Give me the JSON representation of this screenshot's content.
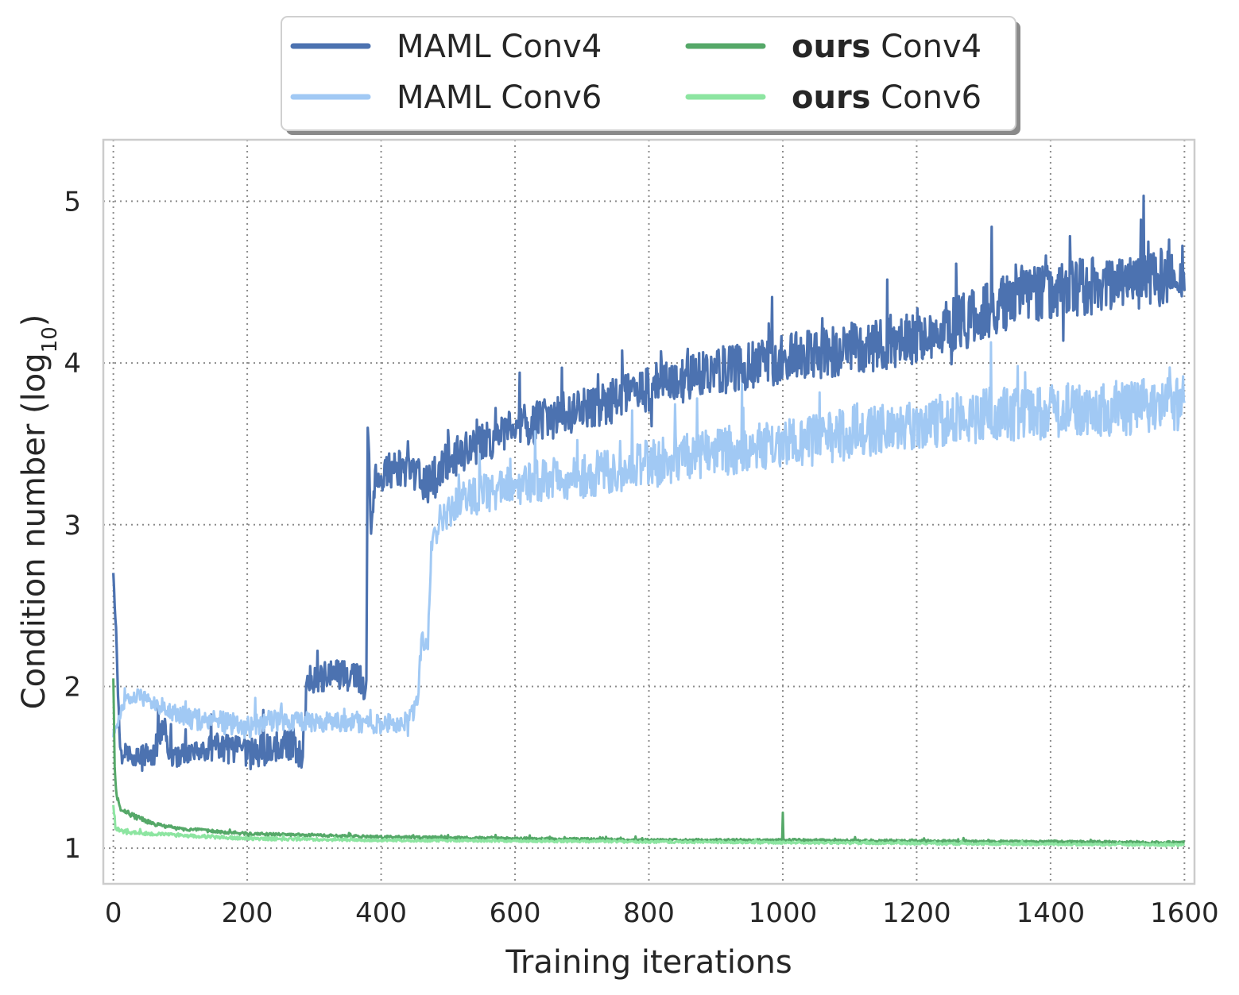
{
  "chart_data": {
    "type": "line",
    "title": "",
    "xlabel": "Training iterations",
    "ylabel_main": "Condition number (log",
    "ylabel_sub": "10",
    "ylabel_close": ")",
    "xlim": [
      -15,
      1615
    ],
    "ylim": [
      0.78,
      5.38
    ],
    "x_ticks": [
      0,
      200,
      400,
      600,
      800,
      1000,
      1200,
      1400,
      1600
    ],
    "y_ticks": [
      1,
      2,
      3,
      4,
      5
    ],
    "grid": true,
    "legend_position": "top-center-outside",
    "series": [
      {
        "key": "maml_conv4",
        "label_bold": "",
        "label_rest": "MAML Conv4",
        "color": "#4c72b0",
        "anchors": [
          [
            0,
            2.72
          ],
          [
            3,
            2.45
          ],
          [
            10,
            1.62
          ],
          [
            30,
            1.57
          ],
          [
            60,
            1.57
          ],
          [
            75,
            1.78
          ],
          [
            85,
            1.55
          ],
          [
            120,
            1.6
          ],
          [
            160,
            1.62
          ],
          [
            200,
            1.58
          ],
          [
            240,
            1.62
          ],
          [
            270,
            1.65
          ],
          [
            282,
            1.55
          ],
          [
            290,
            2.05
          ],
          [
            330,
            2.08
          ],
          [
            370,
            2.05
          ],
          [
            378,
            1.95
          ],
          [
            380,
            3.6
          ],
          [
            385,
            3.0
          ],
          [
            392,
            3.3
          ],
          [
            420,
            3.35
          ],
          [
            450,
            3.3
          ],
          [
            470,
            3.25
          ],
          [
            500,
            3.4
          ],
          [
            550,
            3.5
          ],
          [
            600,
            3.6
          ],
          [
            650,
            3.65
          ],
          [
            700,
            3.7
          ],
          [
            800,
            3.85
          ],
          [
            900,
            3.95
          ],
          [
            1000,
            4.02
          ],
          [
            1100,
            4.08
          ],
          [
            1200,
            4.15
          ],
          [
            1300,
            4.3
          ],
          [
            1350,
            4.42
          ],
          [
            1400,
            4.45
          ],
          [
            1500,
            4.5
          ],
          [
            1600,
            4.55
          ]
        ],
        "noise": [
          0.04,
          0.05,
          0.05,
          0.06,
          0.08,
          0.08,
          0.08,
          0.05,
          0.1,
          0.1,
          0.1,
          0.1,
          0.08,
          0.1,
          0.1,
          0.1,
          0.1,
          0.1,
          0.1,
          0.1,
          0.12,
          0.12,
          0.12,
          0.12,
          0.12,
          0.12,
          0.14,
          0.14,
          0.15,
          0.15,
          0.16,
          0.16,
          0.16,
          0.18,
          0.18,
          0.18,
          0.18,
          0.18
        ],
        "step": 1
      },
      {
        "key": "maml_conv6",
        "label_bold": "",
        "label_rest": "MAML Conv6",
        "color": "#a1c9f4",
        "anchors": [
          [
            0,
            1.7
          ],
          [
            15,
            1.9
          ],
          [
            40,
            1.95
          ],
          [
            80,
            1.85
          ],
          [
            120,
            1.8
          ],
          [
            160,
            1.78
          ],
          [
            200,
            1.75
          ],
          [
            250,
            1.8
          ],
          [
            300,
            1.78
          ],
          [
            350,
            1.78
          ],
          [
            400,
            1.77
          ],
          [
            440,
            1.78
          ],
          [
            455,
            1.9
          ],
          [
            460,
            2.3
          ],
          [
            470,
            2.25
          ],
          [
            475,
            2.9
          ],
          [
            490,
            3.05
          ],
          [
            520,
            3.15
          ],
          [
            560,
            3.2
          ],
          [
            600,
            3.25
          ],
          [
            700,
            3.3
          ],
          [
            800,
            3.38
          ],
          [
            900,
            3.45
          ],
          [
            1000,
            3.5
          ],
          [
            1100,
            3.55
          ],
          [
            1200,
            3.62
          ],
          [
            1300,
            3.68
          ],
          [
            1400,
            3.7
          ],
          [
            1500,
            3.72
          ],
          [
            1600,
            3.75
          ]
        ],
        "noise": [
          0.04,
          0.04,
          0.04,
          0.05,
          0.07,
          0.07,
          0.07,
          0.07,
          0.06,
          0.06,
          0.06,
          0.06,
          0.06,
          0.06,
          0.06,
          0.1,
          0.1,
          0.11,
          0.12,
          0.13,
          0.14,
          0.15,
          0.15,
          0.16,
          0.16,
          0.16,
          0.17,
          0.17,
          0.17,
          0.17
        ],
        "step": 1
      },
      {
        "key": "ours_conv4",
        "label_bold": "ours",
        "label_rest": " Conv4",
        "color": "#55a868",
        "anchors": [
          [
            0,
            2.05
          ],
          [
            2,
            1.5
          ],
          [
            5,
            1.32
          ],
          [
            10,
            1.25
          ],
          [
            30,
            1.2
          ],
          [
            60,
            1.15
          ],
          [
            100,
            1.12
          ],
          [
            200,
            1.09
          ],
          [
            400,
            1.07
          ],
          [
            600,
            1.06
          ],
          [
            800,
            1.05
          ],
          [
            1000,
            1.05
          ],
          [
            1200,
            1.045
          ],
          [
            1400,
            1.04
          ],
          [
            1600,
            1.035
          ]
        ],
        "noise": [
          0.0,
          0.02,
          0.02,
          0.015,
          0.015,
          0.012,
          0.01,
          0.009,
          0.008,
          0.008,
          0.008,
          0.008,
          0.008,
          0.008,
          0.008
        ],
        "spike": [
          1000,
          1.22
        ],
        "step": 1
      },
      {
        "key": "ours_conv6",
        "label_bold": "ours",
        "label_rest": " Conv6",
        "color": "#8de5a1",
        "anchors": [
          [
            0,
            1.27
          ],
          [
            3,
            1.12
          ],
          [
            20,
            1.1
          ],
          [
            60,
            1.09
          ],
          [
            100,
            1.08
          ],
          [
            200,
            1.06
          ],
          [
            400,
            1.05
          ],
          [
            600,
            1.045
          ],
          [
            800,
            1.04
          ],
          [
            1000,
            1.035
          ],
          [
            1200,
            1.03
          ],
          [
            1400,
            1.025
          ],
          [
            1600,
            1.02
          ]
        ],
        "noise": [
          0.02,
          0.015,
          0.013,
          0.012,
          0.011,
          0.01,
          0.008,
          0.007,
          0.007,
          0.007,
          0.007,
          0.007,
          0.007
        ],
        "step": 1
      }
    ]
  }
}
